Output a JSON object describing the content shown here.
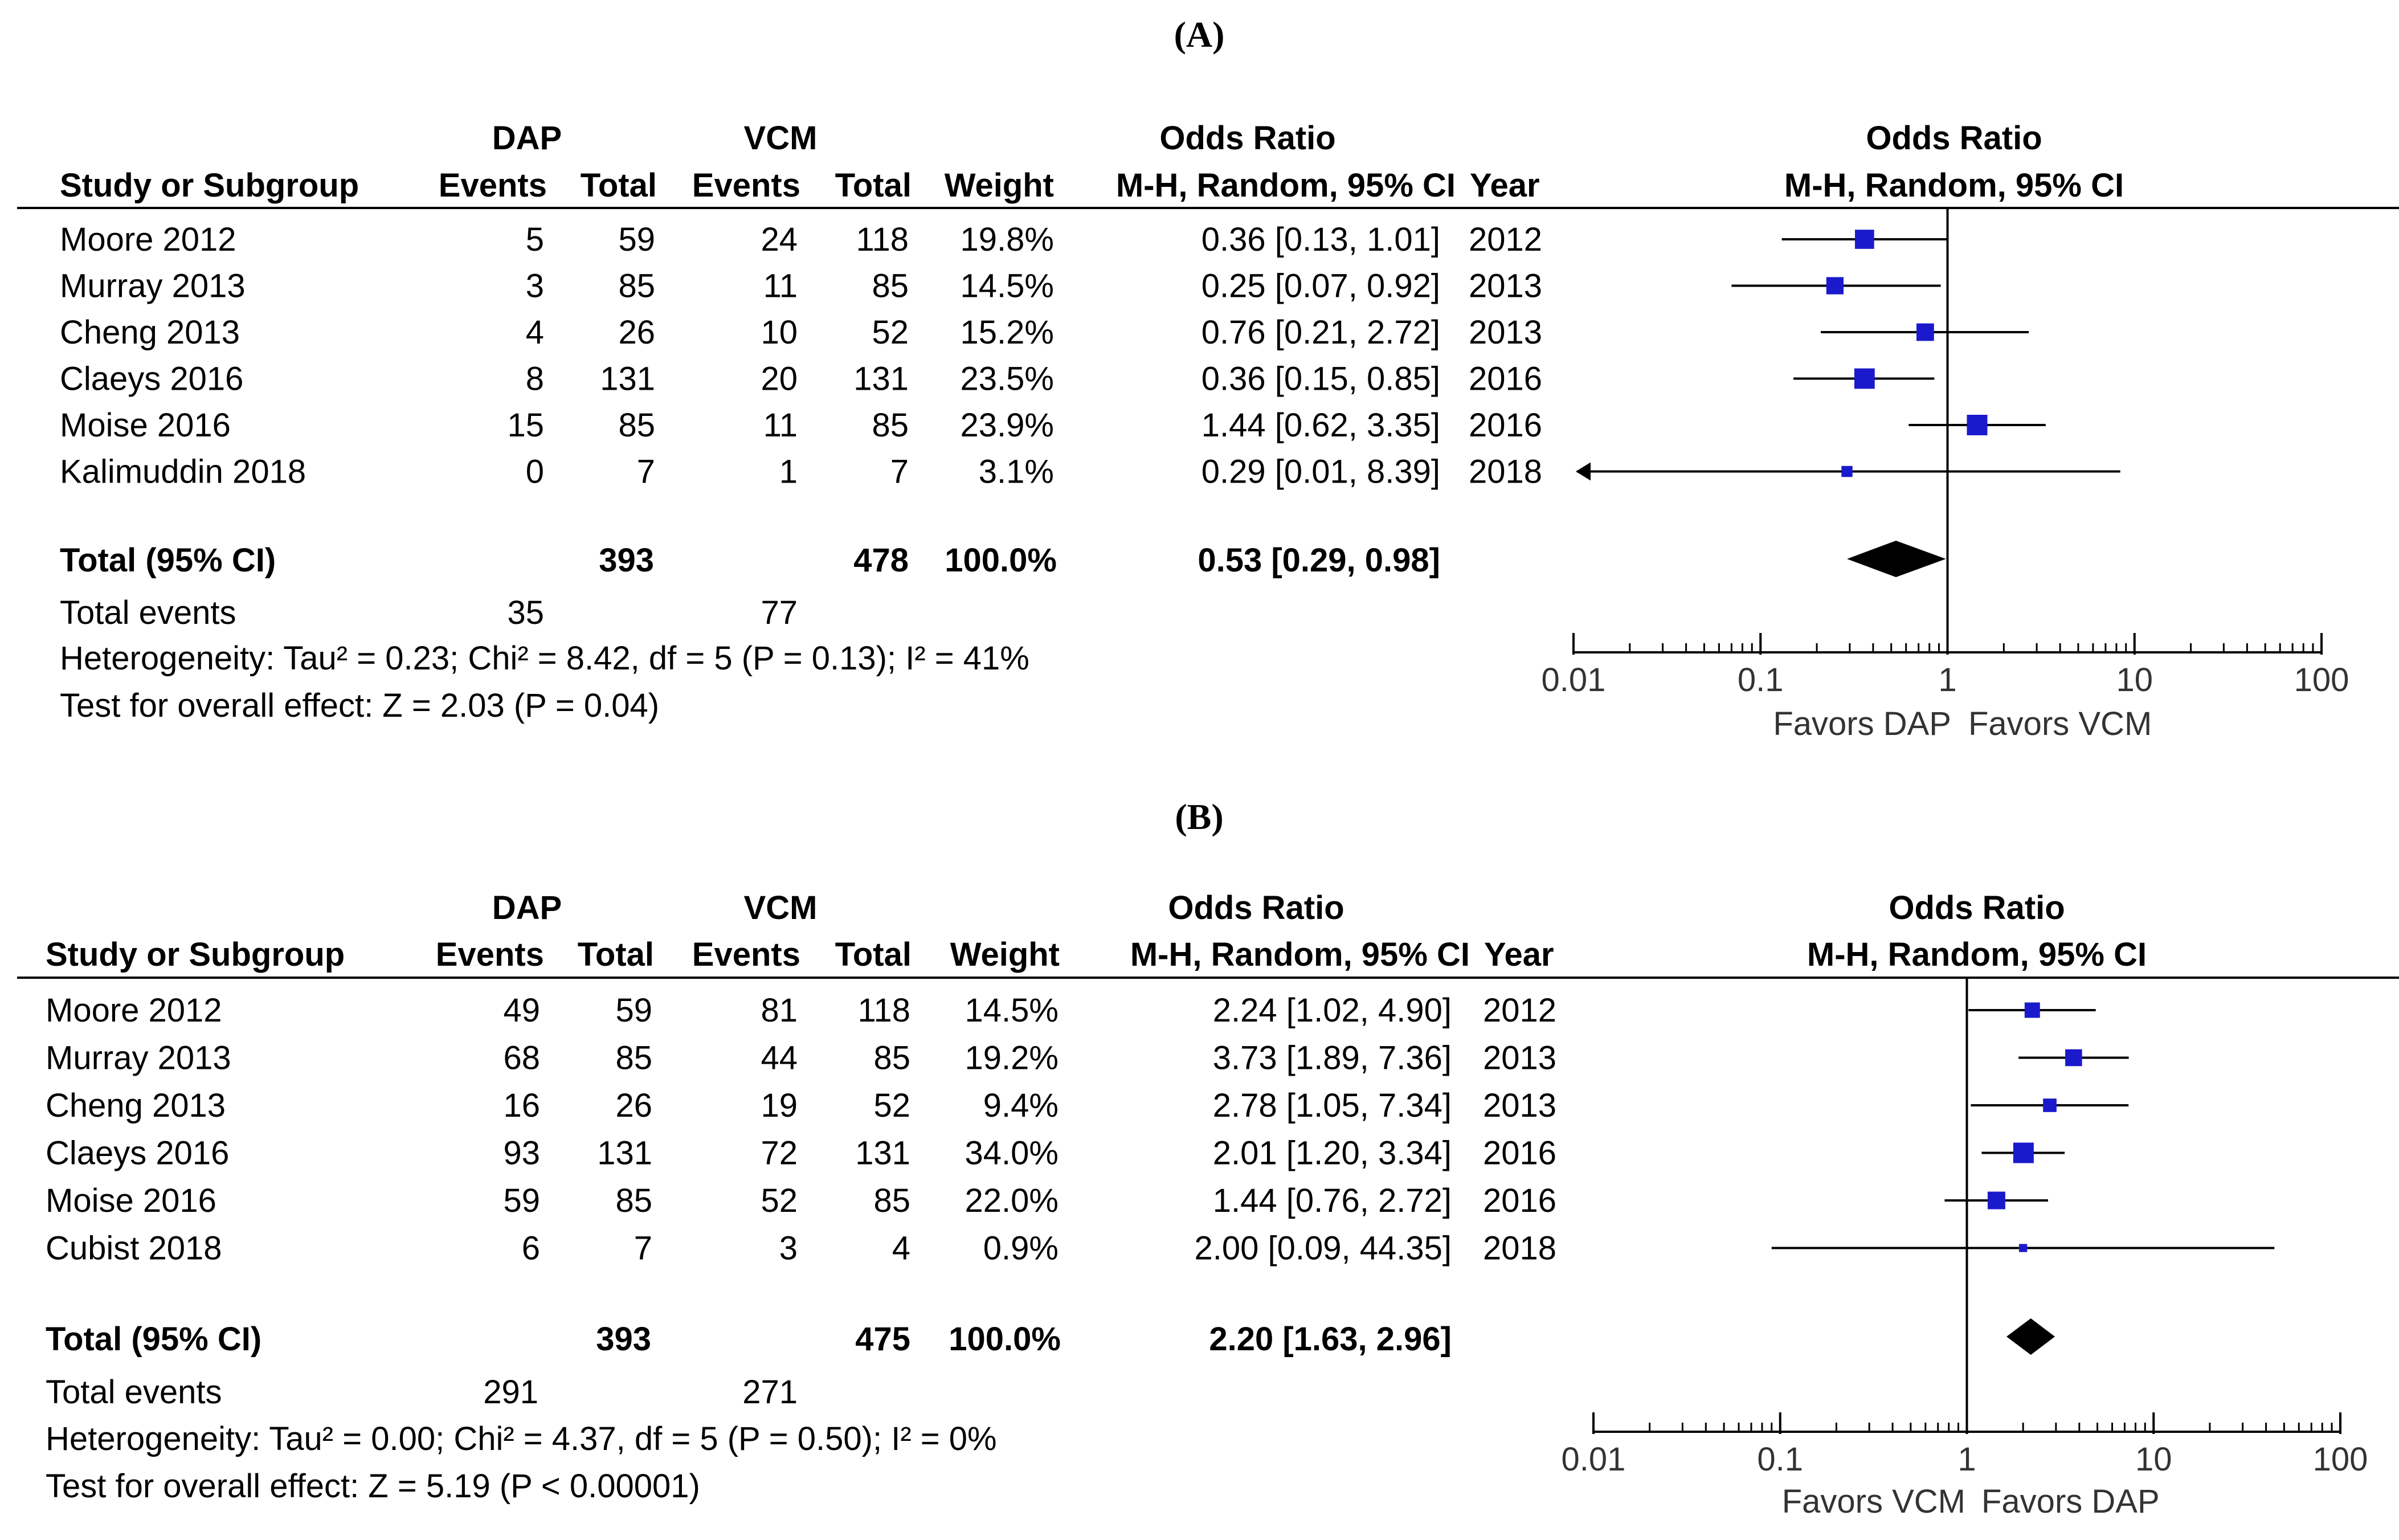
{
  "panels": [
    {
      "panel_label": "(A)",
      "headers": {
        "group1": "DAP",
        "group2": "VCM",
        "or_table": "Odds Ratio",
        "or_plot": "Odds Ratio",
        "study": "Study or Subgroup",
        "events1": "Events",
        "total1": "Total",
        "events2": "Events",
        "total2": "Total",
        "weight": "Weight",
        "method": "M-H, Random, 95% CI",
        "year": "Year",
        "method_plot": "M-H, Random, 95% CI"
      },
      "rows": [
        {
          "study": "Moore 2012",
          "e1": "5",
          "t1": "59",
          "e2": "24",
          "t2": "118",
          "weight": "19.8%",
          "ci_text": "0.36 [0.13, 1.01]",
          "year": "2012"
        },
        {
          "study": "Murray 2013",
          "e1": "3",
          "t1": "85",
          "e2": "11",
          "t2": "85",
          "weight": "14.5%",
          "ci_text": "0.25 [0.07, 0.92]",
          "year": "2013"
        },
        {
          "study": "Cheng 2013",
          "e1": "4",
          "t1": "26",
          "e2": "10",
          "t2": "52",
          "weight": "15.2%",
          "ci_text": "0.76 [0.21, 2.72]",
          "year": "2013"
        },
        {
          "study": "Claeys 2016",
          "e1": "8",
          "t1": "131",
          "e2": "20",
          "t2": "131",
          "weight": "23.5%",
          "ci_text": "0.36 [0.15, 0.85]",
          "year": "2016"
        },
        {
          "study": "Moise 2016",
          "e1": "15",
          "t1": "85",
          "e2": "11",
          "t2": "85",
          "weight": "23.9%",
          "ci_text": "1.44 [0.62, 3.35]",
          "year": "2016"
        },
        {
          "study": "Kalimuddin 2018",
          "e1": "0",
          "t1": "7",
          "e2": "1",
          "t2": "7",
          "weight": "3.1%",
          "ci_text": "0.29 [0.01, 8.39]",
          "year": "2018"
        }
      ],
      "total": {
        "label": "Total (95% CI)",
        "t1": "393",
        "t2": "478",
        "weight": "100.0%",
        "ci_text": "0.53 [0.29, 0.98]"
      },
      "total_events": {
        "label": "Total events",
        "e1": "35",
        "e2": "77"
      },
      "heterogeneity": "Heterogeneity: Tau² = 0.23; Chi² = 8.42, df = 5 (P = 0.13); I² = 41%",
      "overall_effect": "Test for overall effect: Z = 2.03 (P = 0.04)",
      "axis": {
        "ticks": [
          "0.01",
          "0.1",
          "1",
          "10",
          "100"
        ],
        "favors_left": "Favors DAP",
        "favors_right": "Favors VCM"
      }
    },
    {
      "panel_label": "(B)",
      "headers": {
        "group1": "DAP",
        "group2": "VCM",
        "or_table": "Odds Ratio",
        "or_plot": "Odds Ratio",
        "study": "Study or Subgroup",
        "events1": "Events",
        "total1": "Total",
        "events2": "Events",
        "total2": "Total",
        "weight": "Weight",
        "method": "M-H, Random, 95% CI",
        "year": "Year",
        "method_plot": "M-H, Random, 95% CI"
      },
      "rows": [
        {
          "study": "Moore 2012",
          "e1": "49",
          "t1": "59",
          "e2": "81",
          "t2": "118",
          "weight": "14.5%",
          "ci_text": "2.24 [1.02, 4.90]",
          "year": "2012"
        },
        {
          "study": "Murray 2013",
          "e1": "68",
          "t1": "85",
          "e2": "44",
          "t2": "85",
          "weight": "19.2%",
          "ci_text": "3.73 [1.89, 7.36]",
          "year": "2013"
        },
        {
          "study": "Cheng 2013",
          "e1": "16",
          "t1": "26",
          "e2": "19",
          "t2": "52",
          "weight": "9.4%",
          "ci_text": "2.78 [1.05, 7.34]",
          "year": "2013"
        },
        {
          "study": "Claeys 2016",
          "e1": "93",
          "t1": "131",
          "e2": "72",
          "t2": "131",
          "weight": "34.0%",
          "ci_text": "2.01 [1.20, 3.34]",
          "year": "2016"
        },
        {
          "study": "Moise 2016",
          "e1": "59",
          "t1": "85",
          "e2": "52",
          "t2": "85",
          "weight": "22.0%",
          "ci_text": "1.44 [0.76, 2.72]",
          "year": "2016"
        },
        {
          "study": "Cubist 2018",
          "e1": "6",
          "t1": "7",
          "e2": "3",
          "t2": "4",
          "weight": "0.9%",
          "ci_text": "2.00 [0.09, 44.35]",
          "year": "2018"
        }
      ],
      "total": {
        "label": "Total (95% CI)",
        "t1": "393",
        "t2": "475",
        "weight": "100.0%",
        "ci_text": "2.20 [1.63, 2.96]"
      },
      "total_events": {
        "label": "Total events",
        "e1": "291",
        "e2": "271"
      },
      "heterogeneity": "Heterogeneity: Tau² = 0.00; Chi² = 4.37, df = 5 (P = 0.50); I² = 0%",
      "overall_effect": "Test for overall effect: Z = 5.19 (P < 0.00001)",
      "axis": {
        "ticks": [
          "0.01",
          "0.1",
          "1",
          "10",
          "100"
        ],
        "favors_left": "Favors VCM",
        "favors_right": "Favors DAP"
      }
    }
  ],
  "chart_data": [
    {
      "type": "forest",
      "title": "(A)",
      "scale": "log",
      "xlim": [
        0.01,
        100
      ],
      "null_value": 1,
      "studies": [
        {
          "name": "Moore 2012",
          "or": 0.36,
          "lo": 0.13,
          "hi": 1.01,
          "weight": 19.8,
          "year": 2012
        },
        {
          "name": "Murray 2013",
          "or": 0.25,
          "lo": 0.07,
          "hi": 0.92,
          "weight": 14.5,
          "year": 2013
        },
        {
          "name": "Cheng 2013",
          "or": 0.76,
          "lo": 0.21,
          "hi": 2.72,
          "weight": 15.2,
          "year": 2013
        },
        {
          "name": "Claeys 2016",
          "or": 0.36,
          "lo": 0.15,
          "hi": 0.85,
          "weight": 23.5,
          "year": 2016
        },
        {
          "name": "Moise 2016",
          "or": 1.44,
          "lo": 0.62,
          "hi": 3.35,
          "weight": 23.9,
          "year": 2016
        },
        {
          "name": "Kalimuddin 2018",
          "or": 0.29,
          "lo": 0.01,
          "hi": 8.39,
          "weight": 3.1,
          "year": 2018,
          "lo_truncated": true
        }
      ],
      "pooled": {
        "or": 0.53,
        "lo": 0.29,
        "hi": 0.98
      },
      "xlabel_left": "Favors DAP",
      "xlabel_right": "Favors VCM",
      "marker_color": "#1a1acc"
    },
    {
      "type": "forest",
      "title": "(B)",
      "scale": "log",
      "xlim": [
        0.01,
        100
      ],
      "null_value": 1,
      "studies": [
        {
          "name": "Moore 2012",
          "or": 2.24,
          "lo": 1.02,
          "hi": 4.9,
          "weight": 14.5,
          "year": 2012
        },
        {
          "name": "Murray 2013",
          "or": 3.73,
          "lo": 1.89,
          "hi": 7.36,
          "weight": 19.2,
          "year": 2013
        },
        {
          "name": "Cheng 2013",
          "or": 2.78,
          "lo": 1.05,
          "hi": 7.34,
          "weight": 9.4,
          "year": 2013
        },
        {
          "name": "Claeys 2016",
          "or": 2.01,
          "lo": 1.2,
          "hi": 3.34,
          "weight": 34.0,
          "year": 2016
        },
        {
          "name": "Moise 2016",
          "or": 1.44,
          "lo": 0.76,
          "hi": 2.72,
          "weight": 22.0,
          "year": 2016
        },
        {
          "name": "Cubist 2018",
          "or": 2.0,
          "lo": 0.09,
          "hi": 44.35,
          "weight": 0.9,
          "year": 2018
        }
      ],
      "pooled": {
        "or": 2.2,
        "lo": 1.63,
        "hi": 2.96
      },
      "xlabel_left": "Favors VCM",
      "xlabel_right": "Favors DAP",
      "marker_color": "#1a1acc"
    }
  ]
}
